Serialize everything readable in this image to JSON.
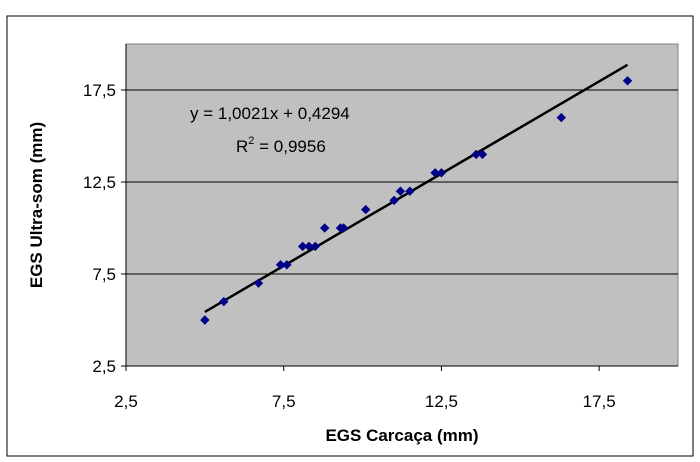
{
  "chart_data": {
    "type": "scatter",
    "xlabel": "EGS Carcaça (mm)",
    "ylabel": "EGS Ultra-som (mm)",
    "xlim": [
      2.5,
      20
    ],
    "ylim": [
      2.5,
      20
    ],
    "x_ticks": [
      "2,5",
      "7,5",
      "12,5",
      "17,5"
    ],
    "y_ticks": [
      "2,5",
      "7,5",
      "12,5",
      "17,5"
    ],
    "x_tick_values": [
      2.5,
      7.5,
      12.5,
      17.5
    ],
    "y_tick_values": [
      2.5,
      7.5,
      12.5,
      17.5
    ],
    "grid": "horizontal",
    "plot_background": "#c0c0c0",
    "series": [
      {
        "color": "#00008b",
        "points": [
          {
            "x": 5.0,
            "y": 5.0
          },
          {
            "x": 5.6,
            "y": 6.0
          },
          {
            "x": 6.7,
            "y": 7.0
          },
          {
            "x": 7.4,
            "y": 8.0
          },
          {
            "x": 7.6,
            "y": 8.0
          },
          {
            "x": 8.1,
            "y": 9.0
          },
          {
            "x": 8.3,
            "y": 9.0
          },
          {
            "x": 8.5,
            "y": 9.0
          },
          {
            "x": 8.8,
            "y": 10.0
          },
          {
            "x": 9.3,
            "y": 10.0
          },
          {
            "x": 9.4,
            "y": 10.0
          },
          {
            "x": 10.1,
            "y": 11.0
          },
          {
            "x": 11.0,
            "y": 11.5
          },
          {
            "x": 11.2,
            "y": 12.0
          },
          {
            "x": 11.5,
            "y": 12.0
          },
          {
            "x": 12.3,
            "y": 13.0
          },
          {
            "x": 12.5,
            "y": 13.0
          },
          {
            "x": 13.6,
            "y": 14.0
          },
          {
            "x": 13.8,
            "y": 14.0
          },
          {
            "x": 16.3,
            "y": 16.0
          },
          {
            "x": 18.4,
            "y": 18.0
          }
        ]
      }
    ],
    "trendline": {
      "slope": 1.0021,
      "intercept": 0.4294,
      "x_range": [
        5.0,
        18.4
      ],
      "color": "#000000"
    },
    "annotations": {
      "equation": "y = 1,0021x + 0,4294",
      "r2_prefix": "R",
      "r2_sup": "2",
      "r2_value": " = 0,9956"
    }
  }
}
